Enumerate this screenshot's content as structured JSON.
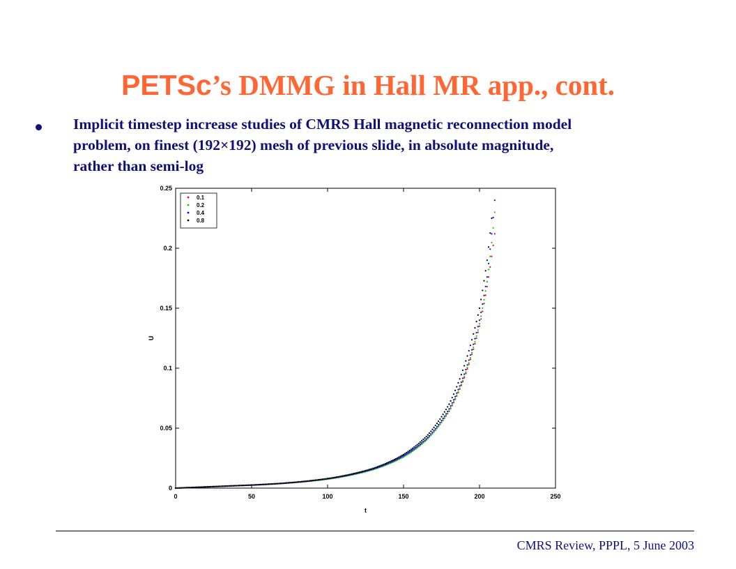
{
  "slide": {
    "title_part1": "PETSc",
    "title_part2": "’s DMMG in Hall MR app., cont.",
    "bullet_lines": [
      "Implicit timestep increase studies of CMRS Hall magnetic reconnection model",
      "problem, on finest (192×192) mesh of previous slide, in absolute magnitude,",
      "rather than semi-log"
    ],
    "footer": "CMRS Review, PPPL, 5 June 2003",
    "title_color": "#ff6633",
    "text_color": "#10107a"
  },
  "chart_data": {
    "type": "scatter",
    "title": "",
    "xlabel": "t",
    "ylabel": "U",
    "xlim": [
      0,
      250
    ],
    "ylim": [
      0,
      0.25
    ],
    "xticks": [
      0,
      50,
      100,
      150,
      200,
      250
    ],
    "yticks": [
      0,
      0.05,
      0.1,
      0.15,
      0.2,
      0.25
    ],
    "ytick_labels": [
      "0",
      "0.05",
      "0.1",
      "0.15",
      "0.2",
      "0.25"
    ],
    "grid": false,
    "legend_position": "top-left",
    "series": [
      {
        "name": "0.1",
        "color": "#ff0000",
        "x": [
          0,
          50,
          100,
          130,
          150,
          165,
          180,
          190,
          200,
          205,
          210
        ],
        "y": [
          0.0,
          0.0025,
          0.0075,
          0.0155,
          0.026,
          0.04,
          0.064,
          0.092,
          0.135,
          0.168,
          0.212
        ]
      },
      {
        "name": "0.2",
        "color": "#00cc00",
        "x": [
          0,
          50,
          100,
          130,
          150,
          165,
          180,
          190,
          200,
          205,
          210
        ],
        "y": [
          0.0,
          0.0025,
          0.0075,
          0.0155,
          0.026,
          0.04,
          0.0645,
          0.093,
          0.137,
          0.172,
          0.23
        ]
      },
      {
        "name": "0.4",
        "color": "#0000ff",
        "x": [
          0,
          50,
          100,
          130,
          150,
          165,
          180,
          190,
          200,
          205,
          210
        ],
        "y": [
          0.0,
          0.0025,
          0.0078,
          0.016,
          0.027,
          0.041,
          0.066,
          0.095,
          0.14,
          0.176,
          0.24
        ]
      },
      {
        "name": "0.8",
        "color": "#000000",
        "x": [
          0,
          50,
          100,
          130,
          150,
          165,
          180,
          190,
          200,
          205,
          208
        ],
        "y": [
          0.0,
          0.0026,
          0.008,
          0.0165,
          0.028,
          0.043,
          0.07,
          0.102,
          0.15,
          0.19,
          0.225
        ]
      }
    ]
  }
}
